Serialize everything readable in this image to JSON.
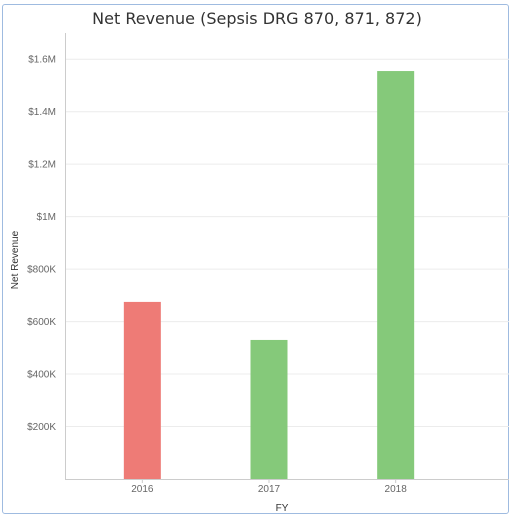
{
  "chart_data": {
    "type": "bar",
    "title": "Net Revenue (Sepsis DRG 870, 871, 872)",
    "xlabel": "FY",
    "ylabel": "Net Revenue",
    "categories": [
      "2016",
      "2017",
      "2018"
    ],
    "values": [
      675000,
      530000,
      1555000
    ],
    "bar_colors": [
      "#ee7b76",
      "#85c97a",
      "#85c97a"
    ],
    "ylim": [
      0,
      1700000
    ],
    "yticks": [
      200000,
      400000,
      600000,
      800000,
      1000000,
      1200000,
      1400000,
      1600000
    ],
    "ytick_labels": [
      "$200K",
      "$400K",
      "$600K",
      "$800K",
      "$1M",
      "$1.2M",
      "$1.4M",
      "$1.6M"
    ],
    "grid": true
  }
}
